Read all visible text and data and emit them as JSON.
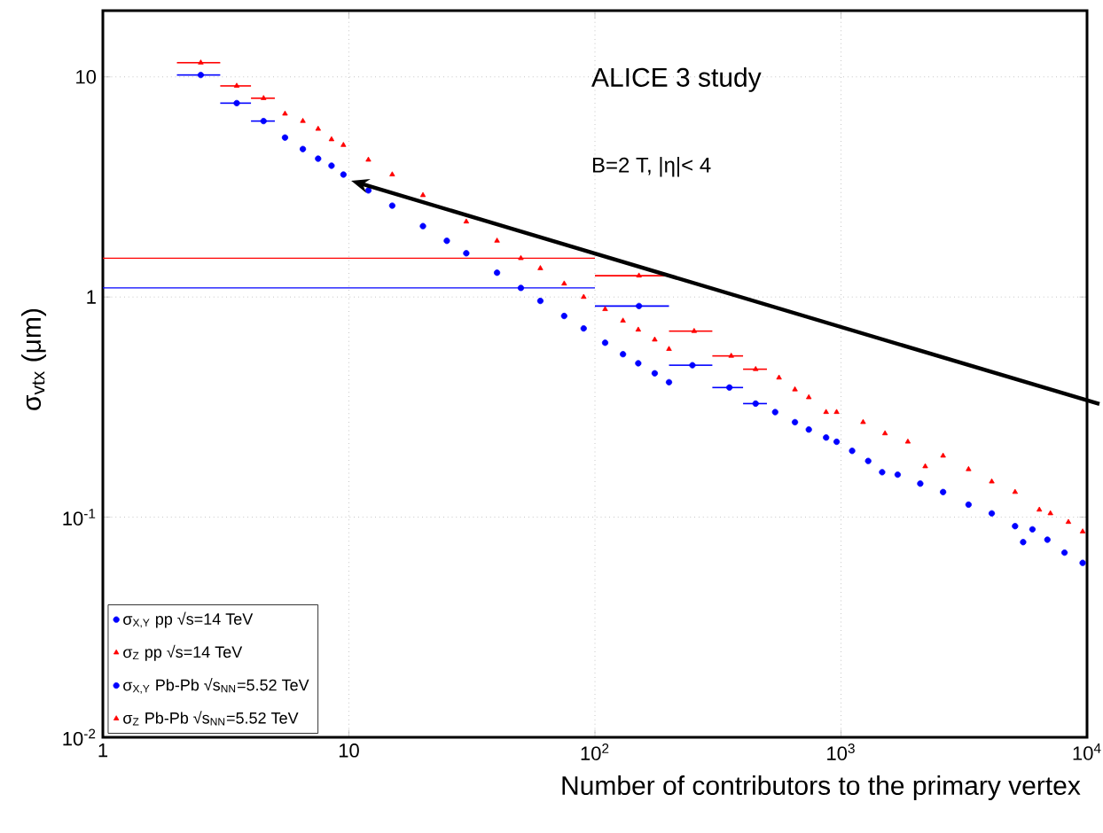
{
  "chart_data": {
    "type": "scatter",
    "xlabel": "Number of contributors to the primary vertex",
    "ylabel": "σ$_{vtx}$ (μm)",
    "annotations": [
      "ALICE 3 study",
      "B=2 T, |η|< 4"
    ],
    "log": "xy",
    "grid": true,
    "legend": "bottom left",
    "xlim": [
      1,
      10000
    ],
    "ylim": [
      0.01,
      20
    ],
    "xticks": [
      1,
      10,
      {
        "value": 100,
        "label": "10$^{2}$"
      },
      {
        "value": 1000,
        "label": "10$^{3}$"
      },
      {
        "value": 10000,
        "label": "10$^{4}$"
      }
    ],
    "yticks": [
      {
        "value": 0.01,
        "label": "10$^{-2}$"
      },
      {
        "value": 0.1,
        "label": "10$^{-1}$"
      },
      1,
      10
    ],
    "series": [
      {
        "name": "σ$_{X,Y}$ pp √s=14 TeV",
        "color": "#0000ff",
        "marker": "circle",
        "x": [
          2.5,
          3.5,
          4.5,
          5.5,
          6.5,
          7.5,
          8.5,
          9.5,
          12,
          15,
          20,
          25,
          30,
          40,
          50,
          60,
          75,
          90,
          110,
          130,
          150,
          175,
          200
        ],
        "values": [
          10.2,
          7.6,
          6.3,
          5.3,
          4.7,
          4.25,
          3.95,
          3.6,
          3.05,
          2.6,
          2.1,
          1.8,
          1.58,
          1.29,
          1.1,
          0.96,
          0.82,
          0.72,
          0.62,
          0.55,
          0.5,
          0.45,
          0.41
        ],
        "xerrors": [
          [
            2,
            3
          ],
          [
            3,
            4
          ],
          [
            4,
            5
          ],
          null,
          null,
          null,
          null,
          null,
          null,
          null,
          null,
          null,
          null,
          null,
          null,
          null,
          null,
          null,
          null,
          null,
          null,
          null,
          null
        ]
      },
      {
        "name": "σ$_{Z}$ pp √s=14 TeV",
        "color": "#ff0000",
        "marker": "triangle",
        "x": [
          2.5,
          3.5,
          4.5,
          5.5,
          6.5,
          7.5,
          8.5,
          9.5,
          12,
          15,
          20,
          25,
          30,
          40,
          50,
          60,
          75,
          90,
          110,
          130,
          150,
          175,
          200
        ],
        "values": [
          11.6,
          9.1,
          8.0,
          6.8,
          6.3,
          5.8,
          5.2,
          4.9,
          4.2,
          3.6,
          2.9,
          null,
          2.2,
          1.8,
          1.5,
          1.35,
          1.15,
          1.0,
          0.88,
          0.78,
          0.71,
          0.64,
          0.58
        ],
        "xerrors": [
          [
            2,
            3
          ],
          [
            3,
            4
          ],
          [
            4,
            5
          ],
          null,
          null,
          null,
          null,
          null,
          null,
          null,
          null,
          null,
          null,
          null,
          null,
          null,
          null,
          null,
          null,
          null,
          null,
          null,
          null
        ]
      },
      {
        "name": "σ$_{X,Y}$ Pb-Pb √s$_{NN}$=5.52 TeV",
        "color": "#0000ff",
        "marker": "circle",
        "x": [
          151,
          249,
          352,
          450,
          540,
          650,
          740,
          870,
          960,
          1110,
          1290,
          1470,
          1700,
          2100,
          2600,
          3300,
          4100,
          5100,
          5500,
          6000,
          6900,
          8100,
          9600
        ],
        "values": [
          0.91,
          0.49,
          0.388,
          0.328,
          0.3,
          0.27,
          0.25,
          0.23,
          0.22,
          0.2,
          0.18,
          0.16,
          0.156,
          0.142,
          0.13,
          0.114,
          0.104,
          0.091,
          0.077,
          0.088,
          0.079,
          0.069,
          0.062
        ],
        "xerrors": [
          [
            100,
            200
          ],
          [
            200,
            300
          ],
          [
            300,
            400
          ],
          [
            400,
            500
          ],
          null,
          null,
          null,
          null,
          null,
          null,
          null,
          null,
          null,
          null,
          null,
          null,
          null,
          null,
          null,
          null,
          null,
          null,
          null
        ]
      },
      {
        "name": "σ$_{Z}$ Pb-Pb √s$_{NN}$=5.52 TeV",
        "color": "#ff0000",
        "marker": "triangle",
        "x": [
          151,
          253,
          358,
          450,
          560,
          650,
          740,
          870,
          960,
          1230,
          1510,
          1870,
          2200,
          2600,
          3300,
          4100,
          5100,
          6400,
          7100,
          8400,
          9600
        ],
        "values": [
          1.25,
          0.7,
          0.54,
          0.47,
          0.43,
          0.38,
          0.35,
          0.3,
          0.3,
          0.27,
          0.24,
          0.22,
          0.17,
          0.19,
          0.165,
          0.145,
          0.13,
          0.108,
          0.104,
          0.095,
          0.086
        ],
        "xerrors": [
          [
            100,
            200
          ],
          [
            200,
            300
          ],
          [
            300,
            400
          ],
          [
            400,
            500
          ],
          null,
          null,
          null,
          null,
          null,
          null,
          null,
          null,
          null,
          null,
          null,
          null,
          null,
          null,
          null,
          null,
          null
        ]
      },
      {
        "type": "line",
        "color": "#ff0000",
        "x": [
          1,
          100
        ],
        "values": [
          1.5,
          1.5
        ]
      },
      {
        "type": "line",
        "color": "#0000ff",
        "x": [
          1,
          100
        ],
        "values": [
          1.1,
          1.1
        ]
      }
    ]
  }
}
